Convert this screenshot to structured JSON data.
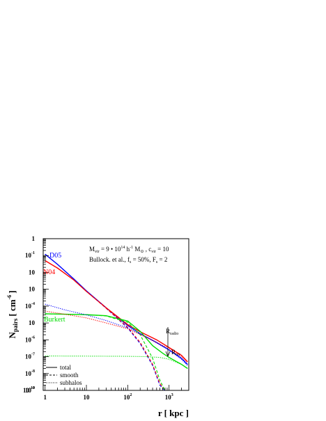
{
  "chart_data": {
    "type": "line",
    "xlabel": "r [ kpc ]",
    "ylabel": "N",
    "ylabel_sub": "pairs",
    "ylabel_unit": "[ cm",
    "ylabel_unit_exp": "-6",
    "ylabel_close": "]",
    "x_scale": "log",
    "y_scale": "log",
    "xlim": [
      0.9,
      3000
    ],
    "ylim": [
      1e-10,
      0.1
    ],
    "x_ticks": [
      {
        "value": 1,
        "mantissa": "1",
        "exp": ""
      },
      {
        "value": 10,
        "mantissa": "10",
        "exp": ""
      },
      {
        "value": 100,
        "mantissa": "10",
        "exp": "2"
      },
      {
        "value": 1000,
        "mantissa": "10",
        "exp": "3"
      }
    ],
    "y_ticks": [
      {
        "value": 0.1,
        "mantissa": "1",
        "exp": ""
      },
      {
        "value": 0.01,
        "mantissa": "10",
        "exp": "-1"
      },
      {
        "value": 0.001,
        "mantissa": "10",
        "exp": ""
      },
      {
        "value": 0.0001,
        "mantissa": "10",
        "exp": ""
      },
      {
        "value": 1e-05,
        "mantissa": "10",
        "exp": "-4"
      },
      {
        "value": 1e-06,
        "mantissa": "10",
        "exp": ""
      },
      {
        "value": 1e-07,
        "mantissa": "10",
        "exp": "-6"
      },
      {
        "value": 1e-08,
        "mantissa": "10",
        "exp": "-7"
      },
      {
        "value": 1e-09,
        "mantissa": "10",
        "exp": "-8"
      },
      {
        "value": 1e-10,
        "mantissa": "10",
        "exp": "-9"
      },
      {
        "value": 1e-11,
        "mantissa": "10",
        "exp": "-10"
      }
    ],
    "series": [
      {
        "name": "D05",
        "component": "total",
        "color": "#0000ff",
        "dash": "solid",
        "points": [
          [
            1,
            0.012
          ],
          [
            2,
            0.003
          ],
          [
            5,
            0.0004
          ],
          [
            10,
            8e-05
          ],
          [
            30,
            8e-06
          ],
          [
            100,
            7e-07
          ],
          [
            200,
            2.3e-07
          ],
          [
            500,
            7e-08
          ],
          [
            1000,
            2.5e-08
          ],
          [
            2000,
            8e-09
          ],
          [
            2800,
            3.5e-09
          ]
        ]
      },
      {
        "name": "N04",
        "component": "total",
        "color": "#ff0000",
        "dash": "solid",
        "points": [
          [
            1,
            0.005
          ],
          [
            2,
            0.0018
          ],
          [
            5,
            0.00035
          ],
          [
            10,
            7.5e-05
          ],
          [
            30,
            8e-06
          ],
          [
            100,
            8e-07
          ],
          [
            200,
            3e-07
          ],
          [
            500,
            1e-07
          ],
          [
            1000,
            3.5e-08
          ],
          [
            2000,
            1.2e-08
          ],
          [
            2800,
            5e-09
          ]
        ]
      },
      {
        "name": "Burkert",
        "component": "total",
        "color": "#00dd00",
        "dash": "solid",
        "points": [
          [
            1,
            3.5e-06
          ],
          [
            10,
            3.1e-06
          ],
          [
            30,
            2.7e-06
          ],
          [
            100,
            1.3e-06
          ],
          [
            200,
            3.2e-07
          ],
          [
            400,
            4.5e-08
          ],
          [
            700,
            1.6e-08
          ],
          [
            1000,
            9e-09
          ],
          [
            2000,
            3.5e-09
          ],
          [
            2800,
            2e-09
          ]
        ]
      },
      {
        "name": "D05",
        "component": "smooth",
        "color": "#0000ff",
        "dash": "dashed",
        "points": [
          [
            1,
            0.012
          ],
          [
            2,
            0.003
          ],
          [
            5,
            0.0004
          ],
          [
            10,
            8e-05
          ],
          [
            30,
            7.5e-06
          ],
          [
            100,
            5e-07
          ],
          [
            200,
            6e-08
          ],
          [
            400,
            3e-09
          ],
          [
            600,
            2e-10
          ],
          [
            800,
            1e-11
          ]
        ]
      },
      {
        "name": "N04",
        "component": "smooth",
        "color": "#ff0000",
        "dash": "dashed",
        "points": [
          [
            1,
            0.005
          ],
          [
            2,
            0.0018
          ],
          [
            5,
            0.00035
          ],
          [
            10,
            7.5e-05
          ],
          [
            30,
            7.5e-06
          ],
          [
            100,
            5.5e-07
          ],
          [
            200,
            7e-08
          ],
          [
            400,
            3.5e-09
          ],
          [
            600,
            2.5e-10
          ],
          [
            820,
            1e-11
          ]
        ]
      },
      {
        "name": "Burkert",
        "component": "smooth",
        "color": "#00dd00",
        "dash": "dashed",
        "points": [
          [
            1,
            3.5e-06
          ],
          [
            10,
            3.1e-06
          ],
          [
            30,
            2.6e-06
          ],
          [
            100,
            1.1e-06
          ],
          [
            200,
            2e-07
          ],
          [
            400,
            8e-09
          ],
          [
            600,
            4e-10
          ],
          [
            800,
            1e-11
          ]
        ]
      },
      {
        "name": "D05",
        "component": "subhalos",
        "color": "#0000ff",
        "dash": "dotted",
        "points": [
          [
            1,
            1.3e-05
          ],
          [
            3,
            6e-06
          ],
          [
            10,
            3e-06
          ],
          [
            30,
            1.4e-06
          ],
          [
            100,
            5e-07
          ],
          [
            300,
            1.3e-07
          ],
          [
            1000,
            2.5e-08
          ],
          [
            2000,
            7e-09
          ],
          [
            2800,
            3e-09
          ]
        ]
      },
      {
        "name": "N04",
        "component": "subhalos",
        "color": "#ff0000",
        "dash": "dotted",
        "points": [
          [
            1,
            5e-06
          ],
          [
            3,
            3.3e-06
          ],
          [
            10,
            2e-06
          ],
          [
            30,
            1e-06
          ],
          [
            100,
            4.5e-07
          ],
          [
            300,
            1.3e-07
          ],
          [
            1000,
            3e-08
          ],
          [
            2000,
            1e-08
          ],
          [
            2800,
            4.5e-09
          ]
        ]
      },
      {
        "name": "Burkert",
        "component": "subhalos",
        "color": "#00dd00",
        "dash": "dotted",
        "points": [
          [
            1,
            1.1e-08
          ],
          [
            10,
            1.08e-08
          ],
          [
            100,
            1.05e-08
          ],
          [
            300,
            1e-08
          ],
          [
            600,
            9e-09
          ],
          [
            1000,
            7e-09
          ],
          [
            2000,
            3.5e-09
          ],
          [
            2800,
            2e-09
          ]
        ]
      }
    ],
    "series_labels": [
      {
        "text": "D05",
        "color": "#0000ff"
      },
      {
        "text": "N04",
        "color": "#ff0000"
      },
      {
        "text": "Burkert",
        "color": "#00dd00"
      }
    ],
    "annotation_line1": {
      "a": "M",
      "a_sub": "vir",
      "b": " = 9 • 10",
      "b_sup": "14",
      "c": " h",
      "c_sup": "-1",
      "d": " M",
      "d_sub": "⊙",
      "e": " , c",
      "e_sub": "vir",
      "f": " = 10"
    },
    "annotation_line2": {
      "a": "Bullock. et al., f",
      "a_sub": "s",
      "b": " = 50%, F",
      "b_sub": "s",
      "c": " = 2"
    },
    "radius_markers": [
      {
        "label": "R",
        "sub": "radio",
        "r": 2100
      },
      {
        "label": "R",
        "sub": "vir",
        "r": 2100
      }
    ],
    "legend": {
      "placement": "bottom-left",
      "entries": [
        {
          "label": "total",
          "dash": "solid"
        },
        {
          "label": "smooth",
          "dash": "dashed"
        },
        {
          "label": "subhalos",
          "dash": "dotted"
        }
      ]
    },
    "grid": false
  }
}
